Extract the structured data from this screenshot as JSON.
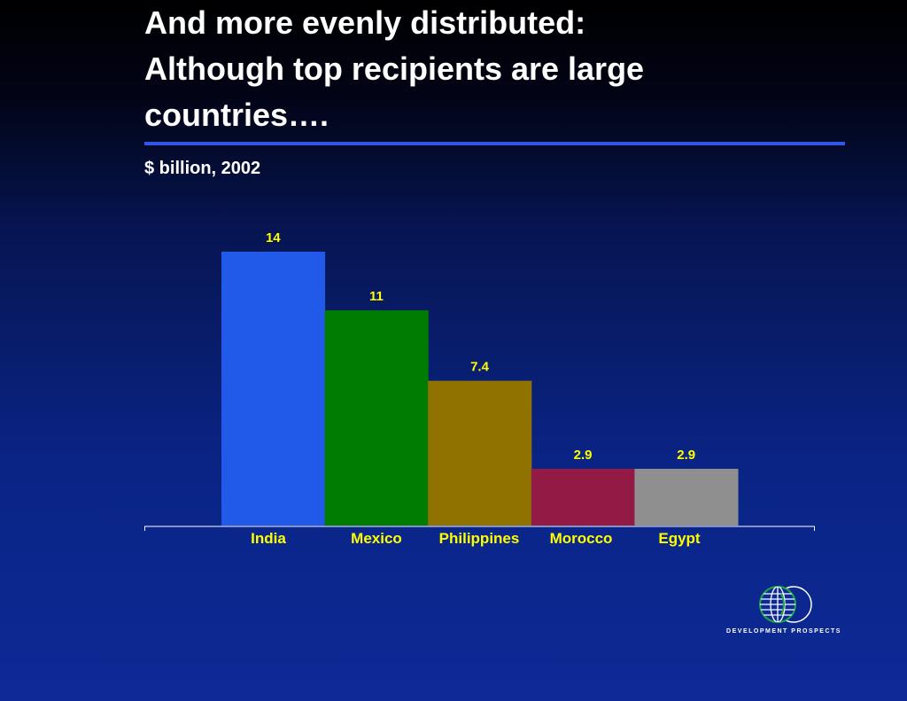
{
  "title_lines": [
    "And more evenly distributed:",
    "Although top recipients are large",
    "countries…."
  ],
  "subtitle": "$ billion, 2002",
  "chart_data": {
    "type": "bar",
    "categories": [
      "India",
      "Mexico",
      "Philippines",
      "Morocco",
      "Egypt"
    ],
    "values": [
      14,
      11,
      7.4,
      2.9,
      2.9
    ],
    "data_labels": [
      "14",
      "11",
      "7.4",
      "2.9",
      "2.9"
    ],
    "colors": [
      "#2159e8",
      "#007d00",
      "#8f7200",
      "#941a46",
      "#8f8f8f"
    ],
    "ylim": [
      0,
      14
    ],
    "grid": false,
    "legend": "none",
    "label_color": "#ffff00",
    "axis_color": "#ffffff"
  },
  "logo": {
    "text": "DEVELOPMENT PROSPECTS",
    "icon": "globe-icon"
  }
}
